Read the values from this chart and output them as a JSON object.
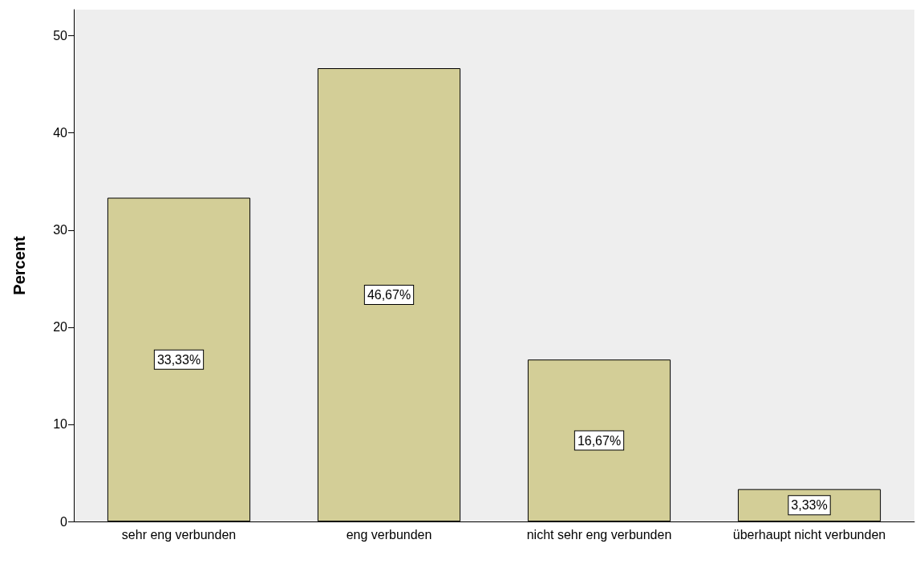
{
  "chart_data": {
    "type": "bar",
    "ylabel": "Percent",
    "categories": [
      "sehr eng verbunden",
      "eng verbunden",
      "nicht sehr eng verbunden",
      "überhaupt nicht verbunden"
    ],
    "values": [
      33.33,
      46.67,
      16.67,
      3.33
    ],
    "value_labels": [
      "33,33%",
      "46,67%",
      "16,67%",
      "3,33%"
    ],
    "color": "#d3ce97",
    "ylim": [
      0,
      52.7
    ],
    "yticks": [
      0,
      10,
      20,
      30,
      40,
      50
    ],
    "grid": false
  }
}
